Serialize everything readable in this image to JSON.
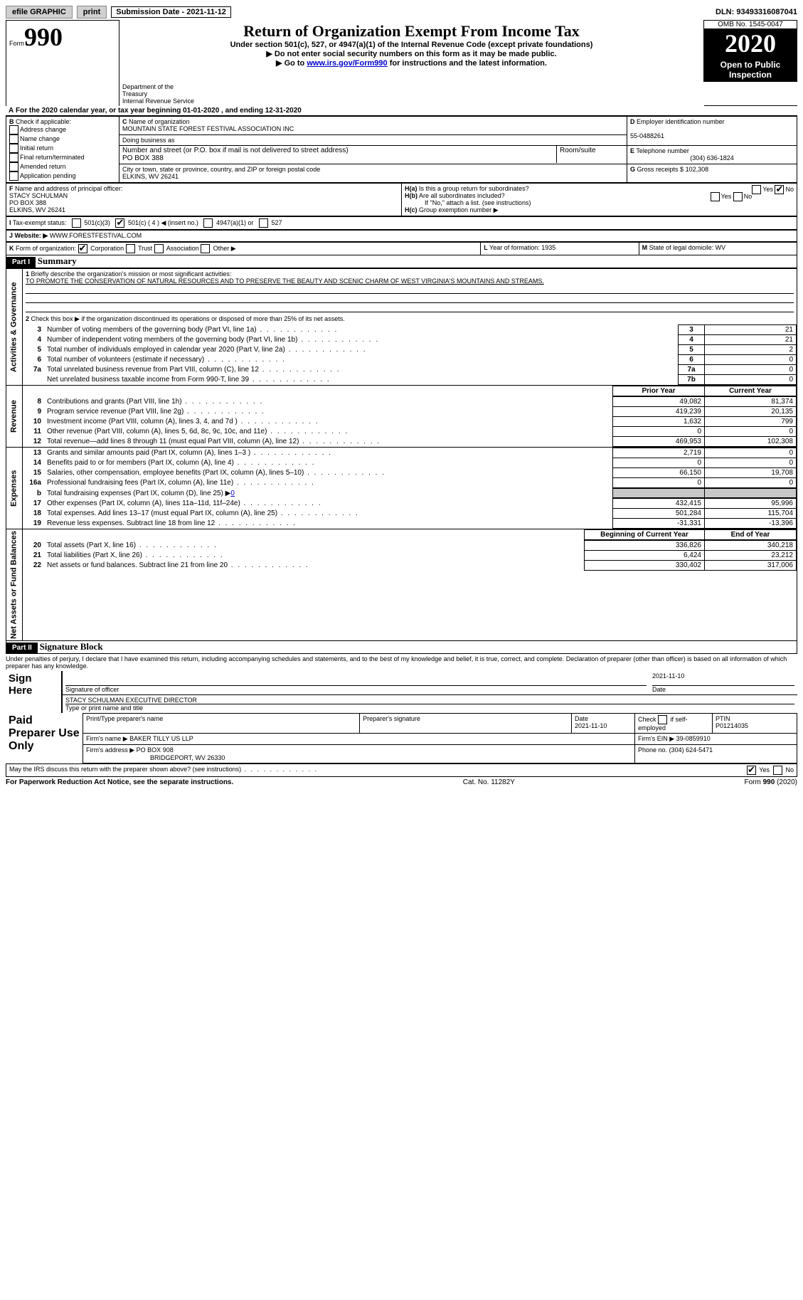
{
  "topbar": {
    "efile": "efile GRAPHIC",
    "print": "print",
    "sub_label": "Submission Date - 2021-11-12",
    "dln": "DLN: 93493316087041"
  },
  "header": {
    "form_prefix": "Form",
    "form_no": "990",
    "title": "Return of Organization Exempt From Income Tax",
    "subtitle": "Under section 501(c), 527, or 4947(a)(1) of the Internal Revenue Code (except private foundations)",
    "arrow1": "Do not enter social security numbers on this form as it may be made public.",
    "arrow2_pre": "Go to ",
    "arrow2_link": "www.irs.gov/Form990",
    "arrow2_post": " for instructions and the latest information.",
    "dept": "Department of the Treasury\nInternal Revenue Service",
    "omb": "OMB No. 1545-0047",
    "year": "2020",
    "open": "Open to Public Inspection"
  },
  "A": {
    "text": "For the 2020 calendar year, or tax year beginning 01-01-2020   , and ending 12-31-2020"
  },
  "B": {
    "label": "Check if applicable:",
    "items": [
      "Address change",
      "Name change",
      "Initial return",
      "Final return/terminated",
      "Amended return",
      "Application pending"
    ]
  },
  "C": {
    "label": "Name of organization",
    "name": "MOUNTAIN STATE FOREST FESTIVAL ASSOCIATION INC",
    "dba_label": "Doing business as",
    "addr_label": "Number and street (or P.O. box if mail is not delivered to street address)",
    "addr": "PO BOX 388",
    "room_label": "Room/suite",
    "city_label": "City or town, state or province, country, and ZIP or foreign postal code",
    "city": "ELKINS, WV  26241"
  },
  "D": {
    "label": "Employer identification number",
    "val": "55-0488261"
  },
  "E": {
    "label": "Telephone number",
    "val": "(304) 636-1824"
  },
  "G": {
    "label": "Gross receipts $",
    "val": "102,308"
  },
  "F": {
    "label": "Name and address of principal officer:",
    "lines": [
      "STACY SCHULMAN",
      "PO BOX 388",
      "ELKINS, WV  26241"
    ]
  },
  "H": {
    "a": "Is this a group return for subordinates?",
    "b": "Are all subordinates included?",
    "b_note": "If \"No,\" attach a list. (see instructions)",
    "c": "Group exemption number ▶",
    "yes": "Yes",
    "no": "No"
  },
  "I": {
    "label": "Tax-exempt status:",
    "o1": "501(c)(3)",
    "o2": "501(c) ( 4 ) ◀ (insert no.)",
    "o3": "4947(a)(1) or",
    "o4": "527"
  },
  "J": {
    "label": "Website: ▶",
    "val": "WWW.FORESTFESTIVAL.COM"
  },
  "K": {
    "label": "Form of organization:",
    "o1": "Corporation",
    "o2": "Trust",
    "o3": "Association",
    "o4": "Other ▶"
  },
  "L": {
    "label": "Year of formation:",
    "val": "1935"
  },
  "M": {
    "label": "State of legal domicile:",
    "val": "WV"
  },
  "part1": {
    "header": "Part I",
    "title": "Summary",
    "q1": "Briefly describe the organization's mission or most significant activities:",
    "mission": "TO PROMOTE THE CONSERVATION OF NATURAL RESOURCES AND TO PRESERVE THE BEAUTY AND SCENIC CHARM OF WEST VIRGINIA'S MOUNTAINS AND STREAMS.",
    "q2": "Check this box ▶     if the organization discontinued its operations or disposed of more than 25% of its net assets.",
    "gov_rows": [
      {
        "n": "3",
        "t": "Number of voting members of the governing body (Part VI, line 1a)",
        "c": "3",
        "v": "21"
      },
      {
        "n": "4",
        "t": "Number of independent voting members of the governing body (Part VI, line 1b)",
        "c": "4",
        "v": "21"
      },
      {
        "n": "5",
        "t": "Total number of individuals employed in calendar year 2020 (Part V, line 2a)",
        "c": "5",
        "v": "2"
      },
      {
        "n": "6",
        "t": "Total number of volunteers (estimate if necessary)",
        "c": "6",
        "v": "0"
      },
      {
        "n": "7a",
        "t": "Total unrelated business revenue from Part VIII, column (C), line 12",
        "c": "7a",
        "v": "0"
      },
      {
        "n": "",
        "t": "Net unrelated business taxable income from Form 990-T, line 39",
        "c": "7b",
        "v": "0"
      }
    ],
    "col_prior": "Prior Year",
    "col_current": "Current Year",
    "rev_rows": [
      {
        "n": "8",
        "t": "Contributions and grants (Part VIII, line 1h)",
        "p": "49,082",
        "c": "81,374"
      },
      {
        "n": "9",
        "t": "Program service revenue (Part VIII, line 2g)",
        "p": "419,239",
        "c": "20,135"
      },
      {
        "n": "10",
        "t": "Investment income (Part VIII, column (A), lines 3, 4, and 7d )",
        "p": "1,632",
        "c": "799"
      },
      {
        "n": "11",
        "t": "Other revenue (Part VIII, column (A), lines 5, 6d, 8c, 9c, 10c, and 11e)",
        "p": "0",
        "c": "0"
      },
      {
        "n": "12",
        "t": "Total revenue—add lines 8 through 11 (must equal Part VIII, column (A), line 12)",
        "p": "469,953",
        "c": "102,308"
      }
    ],
    "exp_rows": [
      {
        "n": "13",
        "t": "Grants and similar amounts paid (Part IX, column (A), lines 1–3 )",
        "p": "2,719",
        "c": "0"
      },
      {
        "n": "14",
        "t": "Benefits paid to or for members (Part IX, column (A), line 4)",
        "p": "0",
        "c": "0"
      },
      {
        "n": "15",
        "t": "Salaries, other compensation, employee benefits (Part IX, column (A), lines 5–10)",
        "p": "66,150",
        "c": "19,708"
      },
      {
        "n": "16a",
        "t": "Professional fundraising fees (Part IX, column (A), line 11e)",
        "p": "0",
        "c": "0"
      }
    ],
    "exp_b": {
      "n": "b",
      "t": "Total fundraising expenses (Part IX, column (D), line 25) ▶",
      "v": "0"
    },
    "exp_rows2": [
      {
        "n": "17",
        "t": "Other expenses (Part IX, column (A), lines 11a–11d, 11f–24e)",
        "p": "432,415",
        "c": "95,996"
      },
      {
        "n": "18",
        "t": "Total expenses. Add lines 13–17 (must equal Part IX, column (A), line 25)",
        "p": "501,284",
        "c": "115,704"
      },
      {
        "n": "19",
        "t": "Revenue less expenses. Subtract line 18 from line 12",
        "p": "-31,331",
        "c": "-13,396"
      }
    ],
    "col_begin": "Beginning of Current Year",
    "col_end": "End of Year",
    "na_rows": [
      {
        "n": "20",
        "t": "Total assets (Part X, line 16)",
        "p": "336,826",
        "c": "340,218"
      },
      {
        "n": "21",
        "t": "Total liabilities (Part X, line 26)",
        "p": "6,424",
        "c": "23,212"
      },
      {
        "n": "22",
        "t": "Net assets or fund balances. Subtract line 21 from line 20",
        "p": "330,402",
        "c": "317,006"
      }
    ],
    "vlabels": {
      "gov": "Activities & Governance",
      "rev": "Revenue",
      "exp": "Expenses",
      "na": "Net Assets or\nFund Balances"
    }
  },
  "part2": {
    "header": "Part II",
    "title": "Signature Block",
    "decl": "Under penalties of perjury, I declare that I have examined this return, including accompanying schedules and statements, and to the best of my knowledge and belief, it is true, correct, and complete. Declaration of preparer (other than officer) is based on all information of which preparer has any knowledge.",
    "sign_here": "Sign Here",
    "sig_officer": "Signature of officer",
    "sig_date": "2021-11-10",
    "date_label": "Date",
    "officer_name": "STACY SCHULMAN  EXECUTIVE DIRECTOR",
    "officer_label": "Type or print name and title",
    "paid": "Paid Preparer Use Only",
    "prep_name_label": "Print/Type preparer's name",
    "prep_sig_label": "Preparer's signature",
    "prep_date_label": "Date",
    "prep_date": "2021-11-10",
    "self_emp": "Check     if self-employed",
    "ptin_label": "PTIN",
    "ptin": "P01214035",
    "firm_name_label": "Firm's name   ▶",
    "firm_name": "BAKER TILLY US LLP",
    "firm_ein_label": "Firm's EIN ▶",
    "firm_ein": "39-0859910",
    "firm_addr_label": "Firm's address ▶",
    "firm_addr": "PO BOX 908",
    "firm_city": "BRIDGEPORT, WV  26330",
    "firm_phone_label": "Phone no.",
    "firm_phone": "(304) 624-5471",
    "discuss": "May the IRS discuss this return with the preparer shown above? (see instructions)"
  },
  "footer": {
    "pra": "For Paperwork Reduction Act Notice, see the separate instructions.",
    "cat": "Cat. No. 11282Y",
    "form": "Form 990 (2020)"
  }
}
